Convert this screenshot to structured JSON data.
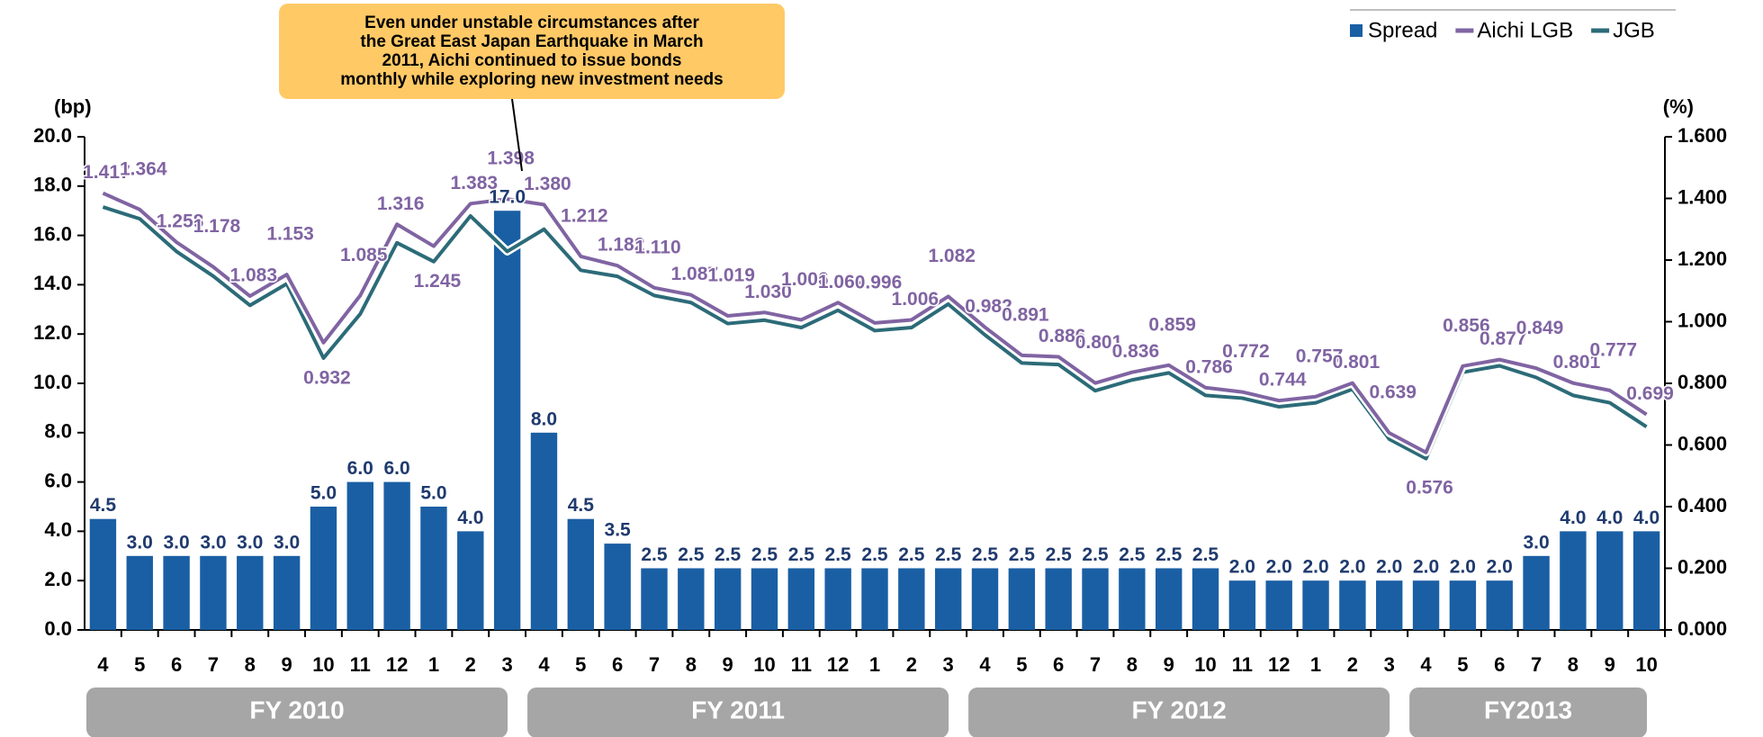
{
  "chart_data": {
    "type": "bar_line_dual",
    "y_axis_label": "(bp)",
    "y2_axis_label": "(%)",
    "annotation": {
      "lines": [
        "Even under unstable circumstances after",
        "the Great East Japan Earthquake in March",
        "2011,  Aichi continued to issue bonds",
        "monthly while exploring new investment needs"
      ]
    },
    "categories": [
      "4",
      "5",
      "6",
      "7",
      "8",
      "9",
      "10",
      "11",
      "12",
      "1",
      "2",
      "3",
      "4",
      "5",
      "6",
      "7",
      "8",
      "9",
      "10",
      "11",
      "12",
      "1",
      "2",
      "3",
      "4",
      "5",
      "6",
      "7",
      "8",
      "9",
      "10",
      "11",
      "12",
      "1",
      "2",
      "3",
      "4",
      "5",
      "6",
      "7",
      "8",
      "9",
      "10"
    ],
    "category_groups": [
      {
        "label": "FY 2010",
        "span": 12
      },
      {
        "label": "FY 2011",
        "span": 12
      },
      {
        "label": "FY 2012",
        "span": 12
      },
      {
        "label": "FY2013",
        "span": 7
      }
    ],
    "ylim": [
      0,
      20
    ],
    "yticks": [
      {
        "value": 0,
        "label": "0.0"
      },
      {
        "value": 2,
        "label": "2.0"
      },
      {
        "value": 4,
        "label": "4.0"
      },
      {
        "value": 6,
        "label": "6.0"
      },
      {
        "value": 8,
        "label": "8.0"
      },
      {
        "value": 10,
        "label": "10.0"
      },
      {
        "value": 12,
        "label": "12.0"
      },
      {
        "value": 14,
        "label": "14.0"
      },
      {
        "value": 16,
        "label": "16.0"
      },
      {
        "value": 18,
        "label": "18.0"
      },
      {
        "value": 20,
        "label": "20.0"
      }
    ],
    "y2lim": [
      0,
      1.6
    ],
    "y2ticks": [
      {
        "value": 0,
        "label": "0.000"
      },
      {
        "value": 0.2,
        "label": "0.200"
      },
      {
        "value": 0.4,
        "label": "0.400"
      },
      {
        "value": 0.6,
        "label": "0.600"
      },
      {
        "value": 0.8,
        "label": "0.800"
      },
      {
        "value": 1.0,
        "label": "1.000"
      },
      {
        "value": 1.2,
        "label": "1.200"
      },
      {
        "value": 1.4,
        "label": "1.400"
      },
      {
        "value": 1.6,
        "label": "1.600"
      }
    ],
    "series": [
      {
        "name": "Spread",
        "kind": "bar",
        "color": "#1a5fa4",
        "label_color": "#1f3a6e",
        "values": [
          4.5,
          3,
          3,
          3,
          3,
          3,
          5,
          6,
          6,
          5,
          4,
          17,
          8,
          4.5,
          3.5,
          2.5,
          2.5,
          2.5,
          2.5,
          2.5,
          2.5,
          2.5,
          2.5,
          2.5,
          2.5,
          2.5,
          2.5,
          2.5,
          2.5,
          2.5,
          2.5,
          2,
          2,
          2,
          2,
          2,
          2,
          2,
          2,
          3,
          4,
          4,
          4
        ],
        "value_labels": [
          "4.5",
          "3.0",
          "3.0",
          "3.0",
          "3.0",
          "3.0",
          "5.0",
          "6.0",
          "6.0",
          "5.0",
          "4.0",
          "17.0",
          "8.0",
          "4.5",
          "3.5",
          "2.5",
          "2.5",
          "2.5",
          "2.5",
          "2.5",
          "2.5",
          "2.5",
          "2.5",
          "2.5",
          "2.5",
          "2.5",
          "2.5",
          "2.5",
          "2.5",
          "2.5",
          "2.5",
          "2.0",
          "2.0",
          "2.0",
          "2.0",
          "2.0",
          "2.0",
          "2.0",
          "2.0",
          "3.0",
          "4.0",
          "4.0",
          "4.0"
        ]
      },
      {
        "name": "Aichi LGB",
        "kind": "line",
        "axis": "y2",
        "color": "#8064a2",
        "values": [
          1.417,
          1.364,
          1.258,
          1.178,
          1.083,
          1.153,
          0.932,
          1.085,
          1.316,
          1.245,
          1.383,
          1.398,
          1.38,
          1.212,
          1.182,
          1.11,
          1.087,
          1.019,
          1.03,
          1.006,
          1.062,
          0.996,
          1.006,
          1.082,
          0.982,
          0.891,
          0.886,
          0.801,
          0.836,
          0.859,
          0.786,
          0.772,
          0.744,
          0.757,
          0.801,
          0.639,
          0.576,
          0.856,
          0.877,
          0.849,
          0.801,
          0.777,
          0.699
        ],
        "value_labels": [
          "1.417",
          "1.364",
          "1.258",
          "1.178",
          "1.083",
          "1.153",
          "0.932",
          "1.085",
          "1.316",
          "1.245",
          "1.383",
          "1.398",
          "1.380",
          "1.212",
          "1.182",
          "1.110",
          "1.087",
          "1.019",
          "1.030",
          "1.006",
          "1.062",
          "0.996",
          "1.006",
          "1.082",
          "0.982",
          "0.891",
          "0.886",
          "0.801",
          "0.836",
          "0.859",
          "0.786",
          "0.772",
          "0.744",
          "0.757",
          "0.801",
          "0.639",
          "0.576",
          "0.856",
          "0.877",
          "0.849",
          "0.801",
          "0.777",
          "0.699"
        ]
      },
      {
        "name": "JGB",
        "kind": "line",
        "axis": "y2",
        "color": "#2c6b78",
        "values": [
          1.372,
          1.334,
          1.228,
          1.148,
          1.053,
          1.123,
          0.882,
          1.025,
          1.256,
          1.195,
          1.343,
          1.228,
          1.3,
          1.167,
          1.147,
          1.085,
          1.062,
          0.994,
          1.005,
          0.981,
          1.037,
          0.971,
          0.981,
          1.057,
          0.957,
          0.866,
          0.861,
          0.776,
          0.811,
          0.834,
          0.761,
          0.752,
          0.724,
          0.737,
          0.781,
          0.619,
          0.556,
          0.836,
          0.857,
          0.819,
          0.761,
          0.737,
          0.659
        ]
      }
    ]
  }
}
